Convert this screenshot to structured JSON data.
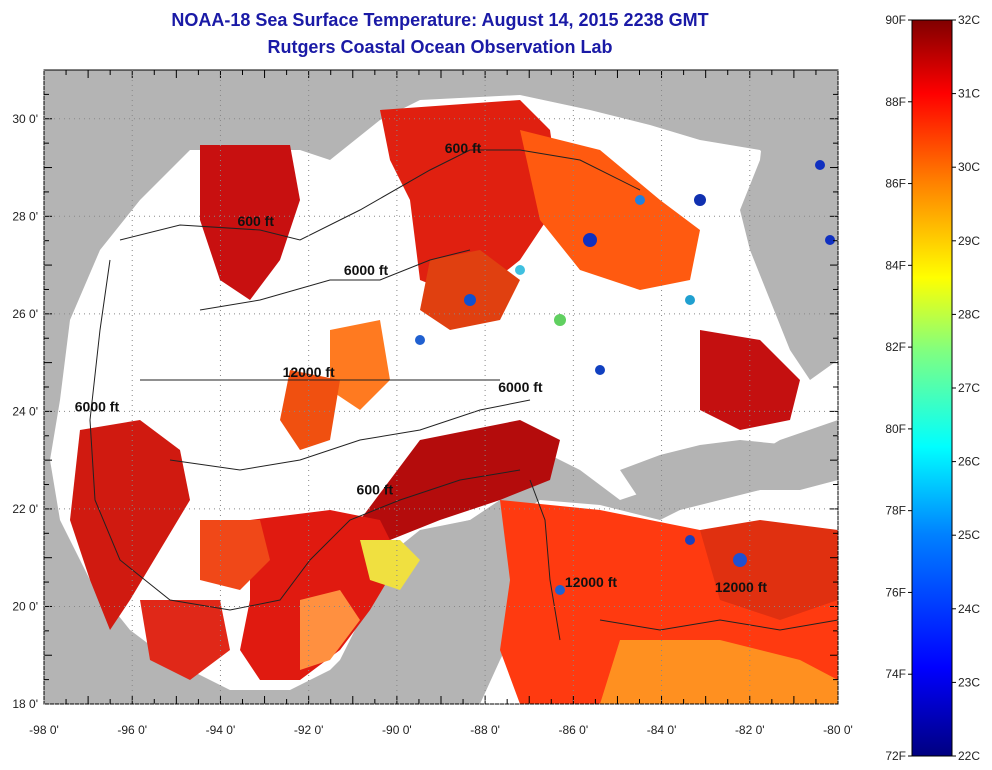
{
  "title_line1": "NOAA-18 Sea Surface Temperature:  August 14, 2015 2238 GMT",
  "title_line2": "Rutgers Coastal Ocean Observation Lab",
  "x_tick_labels": [
    "-98 0'",
    "-96 0'",
    "-94 0'",
    "-92 0'",
    "-90 0'",
    "-88 0'",
    "-86 0'",
    "-84 0'",
    "-82 0'",
    "-80 0'"
  ],
  "x_tick_values": [
    -98,
    -96,
    -94,
    -92,
    -90,
    -88,
    -86,
    -84,
    -82,
    -80
  ],
  "y_tick_labels": [
    "18 0'",
    "20 0'",
    "22 0'",
    "24 0'",
    "26 0'",
    "28 0'",
    "30 0'"
  ],
  "y_tick_values": [
    18,
    20,
    22,
    24,
    26,
    28,
    30
  ],
  "map_extent": {
    "lon": [
      -98,
      -80
    ],
    "lat": [
      18,
      31
    ]
  },
  "contour_labels": [
    {
      "text": "600 ft",
      "lon": -93.2,
      "lat": 27.8
    },
    {
      "text": "600 ft",
      "lon": -88.5,
      "lat": 29.3
    },
    {
      "text": "6000 ft",
      "lon": -90.7,
      "lat": 26.8
    },
    {
      "text": "12000 ft",
      "lon": -92.0,
      "lat": 24.7
    },
    {
      "text": "6000 ft",
      "lon": -87.2,
      "lat": 24.4
    },
    {
      "text": "6000 ft",
      "lon": -96.8,
      "lat": 24.0
    },
    {
      "text": "600 ft",
      "lon": -90.5,
      "lat": 22.3
    },
    {
      "text": "12000 ft",
      "lon": -85.6,
      "lat": 20.4
    },
    {
      "text": "12000 ft",
      "lon": -82.2,
      "lat": 20.3
    }
  ],
  "colorbar": {
    "fahrenheit_labels": [
      "90F",
      "88F",
      "86F",
      "84F",
      "82F",
      "80F",
      "78F",
      "76F",
      "74F",
      "72F"
    ],
    "celsius_labels": [
      "32C",
      "31C",
      "30C",
      "29C",
      "28C",
      "27C",
      "26C",
      "25C",
      "24C",
      "23C",
      "22C"
    ],
    "colors": [
      "#000080",
      "#0000ff",
      "#0080ff",
      "#00ffff",
      "#80ff80",
      "#ffff00",
      "#ff8000",
      "#ff0000",
      "#800000"
    ]
  },
  "colors": {
    "land": "#b4b4b4",
    "no_data": "#ffffff",
    "title": "#1a1aa6"
  }
}
